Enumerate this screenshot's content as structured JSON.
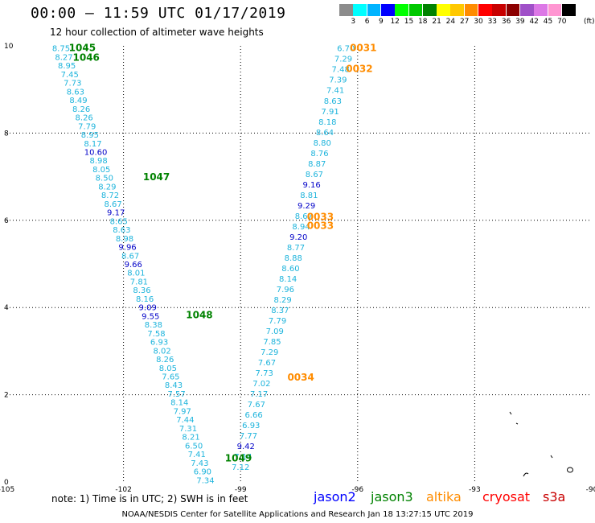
{
  "header": {
    "title": "00:00 — 11:59 UTC 01/17/2019",
    "subtitle": "12 hour collection of altimeter wave heights"
  },
  "legend": {
    "unit": "(ft)",
    "scale": [
      {
        "label": "3",
        "color": "#8c8c8c"
      },
      {
        "label": "6",
        "color": "#00ffff"
      },
      {
        "label": "9",
        "color": "#00b4ff"
      },
      {
        "label": "12",
        "color": "#0000ff"
      },
      {
        "label": "15",
        "color": "#00ff00"
      },
      {
        "label": "18",
        "color": "#00c800"
      },
      {
        "label": "21",
        "color": "#008200"
      },
      {
        "label": "24",
        "color": "#ffff00"
      },
      {
        "label": "27",
        "color": "#ffc800"
      },
      {
        "label": "30",
        "color": "#ff8c00"
      },
      {
        "label": "33",
        "color": "#ff0000"
      },
      {
        "label": "36",
        "color": "#c80000"
      },
      {
        "label": "39",
        "color": "#8c0000"
      },
      {
        "label": "42",
        "color": "#a050c8"
      },
      {
        "label": "45",
        "color": "#dc78e6"
      },
      {
        "label": "70",
        "color": "#ff96d2"
      },
      {
        "label": "",
        "color": "#000000"
      }
    ]
  },
  "colors": {
    "light": "#1eb4dc",
    "dark": "#0000c8",
    "time_green": "#008200",
    "time_orange": "#ff8c00"
  },
  "axes": {
    "lon_min": -105,
    "lon_max": -90,
    "lat_min": 0,
    "lat_max": 10,
    "x_ticks": [
      {
        "value": -105,
        "label": "-105"
      },
      {
        "value": -102,
        "label": "-102"
      },
      {
        "value": -99,
        "label": "-99"
      },
      {
        "value": -96,
        "label": "-96"
      },
      {
        "value": -93,
        "label": "-93"
      },
      {
        "value": -90,
        "label": "-90"
      }
    ],
    "y_ticks": [
      {
        "value": 0,
        "label": "0"
      },
      {
        "value": 2,
        "label": "2"
      },
      {
        "value": 4,
        "label": "4"
      },
      {
        "value": 6,
        "label": "6"
      },
      {
        "value": 8,
        "label": "8"
      },
      {
        "value": 10,
        "label": "10"
      }
    ]
  },
  "tracks": [
    {
      "name": "left-track",
      "lon_top": -103.6,
      "lon_bottom": -99.9,
      "lat_top": 9.95,
      "lat_bottom": 0.05,
      "values": [
        {
          "v": "8.75",
          "c": "light"
        },
        {
          "v": "8.27",
          "c": "light"
        },
        {
          "v": "8.95",
          "c": "light"
        },
        {
          "v": "7.45",
          "c": "light"
        },
        {
          "v": "7.73",
          "c": "light"
        },
        {
          "v": "8.63",
          "c": "light"
        },
        {
          "v": "8.49",
          "c": "light"
        },
        {
          "v": "8.26",
          "c": "light"
        },
        {
          "v": "8.26",
          "c": "light"
        },
        {
          "v": "7.79",
          "c": "light"
        },
        {
          "v": "8.95",
          "c": "light"
        },
        {
          "v": "8.17",
          "c": "light"
        },
        {
          "v": "10.60",
          "c": "dark"
        },
        {
          "v": "8.98",
          "c": "light"
        },
        {
          "v": "8.05",
          "c": "light"
        },
        {
          "v": "8.50",
          "c": "light"
        },
        {
          "v": "8.29",
          "c": "light"
        },
        {
          "v": "8.72",
          "c": "light"
        },
        {
          "v": "8.67",
          "c": "light"
        },
        {
          "v": "9.17",
          "c": "dark"
        },
        {
          "v": "8.65",
          "c": "light"
        },
        {
          "v": "8.63",
          "c": "light"
        },
        {
          "v": "8.98",
          "c": "light"
        },
        {
          "v": "9.96",
          "c": "dark"
        },
        {
          "v": "8.67",
          "c": "light"
        },
        {
          "v": "9.66",
          "c": "dark"
        },
        {
          "v": "8.01",
          "c": "light"
        },
        {
          "v": "7.81",
          "c": "light"
        },
        {
          "v": "8.36",
          "c": "light"
        },
        {
          "v": "8.16",
          "c": "light"
        },
        {
          "v": "9.09",
          "c": "dark"
        },
        {
          "v": "9.55",
          "c": "dark"
        },
        {
          "v": "8.38",
          "c": "light"
        },
        {
          "v": "7.58",
          "c": "light"
        },
        {
          "v": "6.93",
          "c": "light"
        },
        {
          "v": "8.02",
          "c": "light"
        },
        {
          "v": "8.26",
          "c": "light"
        },
        {
          "v": "8.05",
          "c": "light"
        },
        {
          "v": "7.65",
          "c": "light"
        },
        {
          "v": "8.43",
          "c": "light"
        },
        {
          "v": "7.57",
          "c": "light"
        },
        {
          "v": "8.14",
          "c": "light"
        },
        {
          "v": "7.97",
          "c": "light"
        },
        {
          "v": "7.44",
          "c": "light"
        },
        {
          "v": "7.31",
          "c": "light"
        },
        {
          "v": "8.21",
          "c": "light"
        },
        {
          "v": "6.50",
          "c": "light"
        },
        {
          "v": "7.41",
          "c": "light"
        },
        {
          "v": "7.43",
          "c": "light"
        },
        {
          "v": "6.90",
          "c": "light"
        },
        {
          "v": "7.34",
          "c": "light"
        }
      ]
    },
    {
      "name": "right-track",
      "lon_top": -96.3,
      "lon_bottom": -99.0,
      "lat_top": 9.95,
      "lat_bottom": 0.35,
      "values": [
        {
          "v": "6.70",
          "c": "light"
        },
        {
          "v": "7.29",
          "c": "light"
        },
        {
          "v": "7.48",
          "c": "light"
        },
        {
          "v": "7.39",
          "c": "light"
        },
        {
          "v": "7.41",
          "c": "light"
        },
        {
          "v": "8.63",
          "c": "light"
        },
        {
          "v": "7.91",
          "c": "light"
        },
        {
          "v": "8.18",
          "c": "light"
        },
        {
          "v": "8.64",
          "c": "light"
        },
        {
          "v": "8.80",
          "c": "light"
        },
        {
          "v": "8.76",
          "c": "light"
        },
        {
          "v": "8.87",
          "c": "light"
        },
        {
          "v": "8.67",
          "c": "light"
        },
        {
          "v": "9.16",
          "c": "dark"
        },
        {
          "v": "8.81",
          "c": "light"
        },
        {
          "v": "9.29",
          "c": "dark"
        },
        {
          "v": "8.67",
          "c": "light"
        },
        {
          "v": "8.94",
          "c": "light"
        },
        {
          "v": "9.20",
          "c": "dark"
        },
        {
          "v": "8.77",
          "c": "light"
        },
        {
          "v": "8.88",
          "c": "light"
        },
        {
          "v": "8.60",
          "c": "light"
        },
        {
          "v": "8.14",
          "c": "light"
        },
        {
          "v": "7.96",
          "c": "light"
        },
        {
          "v": "8.29",
          "c": "light"
        },
        {
          "v": "8.37",
          "c": "light"
        },
        {
          "v": "7.79",
          "c": "light"
        },
        {
          "v": "7.09",
          "c": "light"
        },
        {
          "v": "7.85",
          "c": "light"
        },
        {
          "v": "7.29",
          "c": "light"
        },
        {
          "v": "7.67",
          "c": "light"
        },
        {
          "v": "7.73",
          "c": "light"
        },
        {
          "v": "7.02",
          "c": "light"
        },
        {
          "v": "7.17",
          "c": "light"
        },
        {
          "v": "7.67",
          "c": "light"
        },
        {
          "v": "6.66",
          "c": "light"
        },
        {
          "v": "6.93",
          "c": "light"
        },
        {
          "v": "7.77",
          "c": "light"
        },
        {
          "v": "9.42",
          "c": "dark"
        },
        {
          "v": "7.14",
          "c": "light"
        },
        {
          "v": "7.12",
          "c": "light"
        }
      ]
    }
  ],
  "time_labels": [
    {
      "text": "1045",
      "lon": -103.4,
      "lat": 9.95,
      "c": "time_green"
    },
    {
      "text": "1046",
      "lon": -103.3,
      "lat": 9.73,
      "c": "time_green"
    },
    {
      "text": "1047",
      "lon": -101.5,
      "lat": 6.99,
      "c": "time_green"
    },
    {
      "text": "1048",
      "lon": -100.4,
      "lat": 3.83,
      "c": "time_green"
    },
    {
      "text": "1049",
      "lon": -99.4,
      "lat": 0.54,
      "c": "time_green"
    },
    {
      "text": "0031",
      "lon": -96.2,
      "lat": 9.95,
      "c": "time_orange"
    },
    {
      "text": "0032",
      "lon": -96.3,
      "lat": 9.47,
      "c": "time_orange"
    },
    {
      "text": "0033",
      "lon": -97.3,
      "lat": 6.08,
      "c": "time_orange"
    },
    {
      "text": "0033",
      "lon": -97.3,
      "lat": 5.88,
      "c": "time_orange"
    },
    {
      "text": "0034",
      "lon": -97.8,
      "lat": 2.4,
      "c": "time_orange"
    }
  ],
  "note": "note: 1) Time is in UTC; 2) SWH is in feet",
  "satellites": [
    {
      "name": "jason2",
      "color": "#0000ff"
    },
    {
      "name": "jason3",
      "color": "#008200"
    },
    {
      "name": "altika",
      "color": "#ff8c00"
    },
    {
      "name": "cryosat",
      "color": "#ff0000"
    },
    {
      "name": "s3a",
      "color": "#c80000"
    }
  ],
  "footer": "NOAA/NESDIS Center for Satellite Applications and Research   Jan 18 13:27:15 UTC 2019"
}
